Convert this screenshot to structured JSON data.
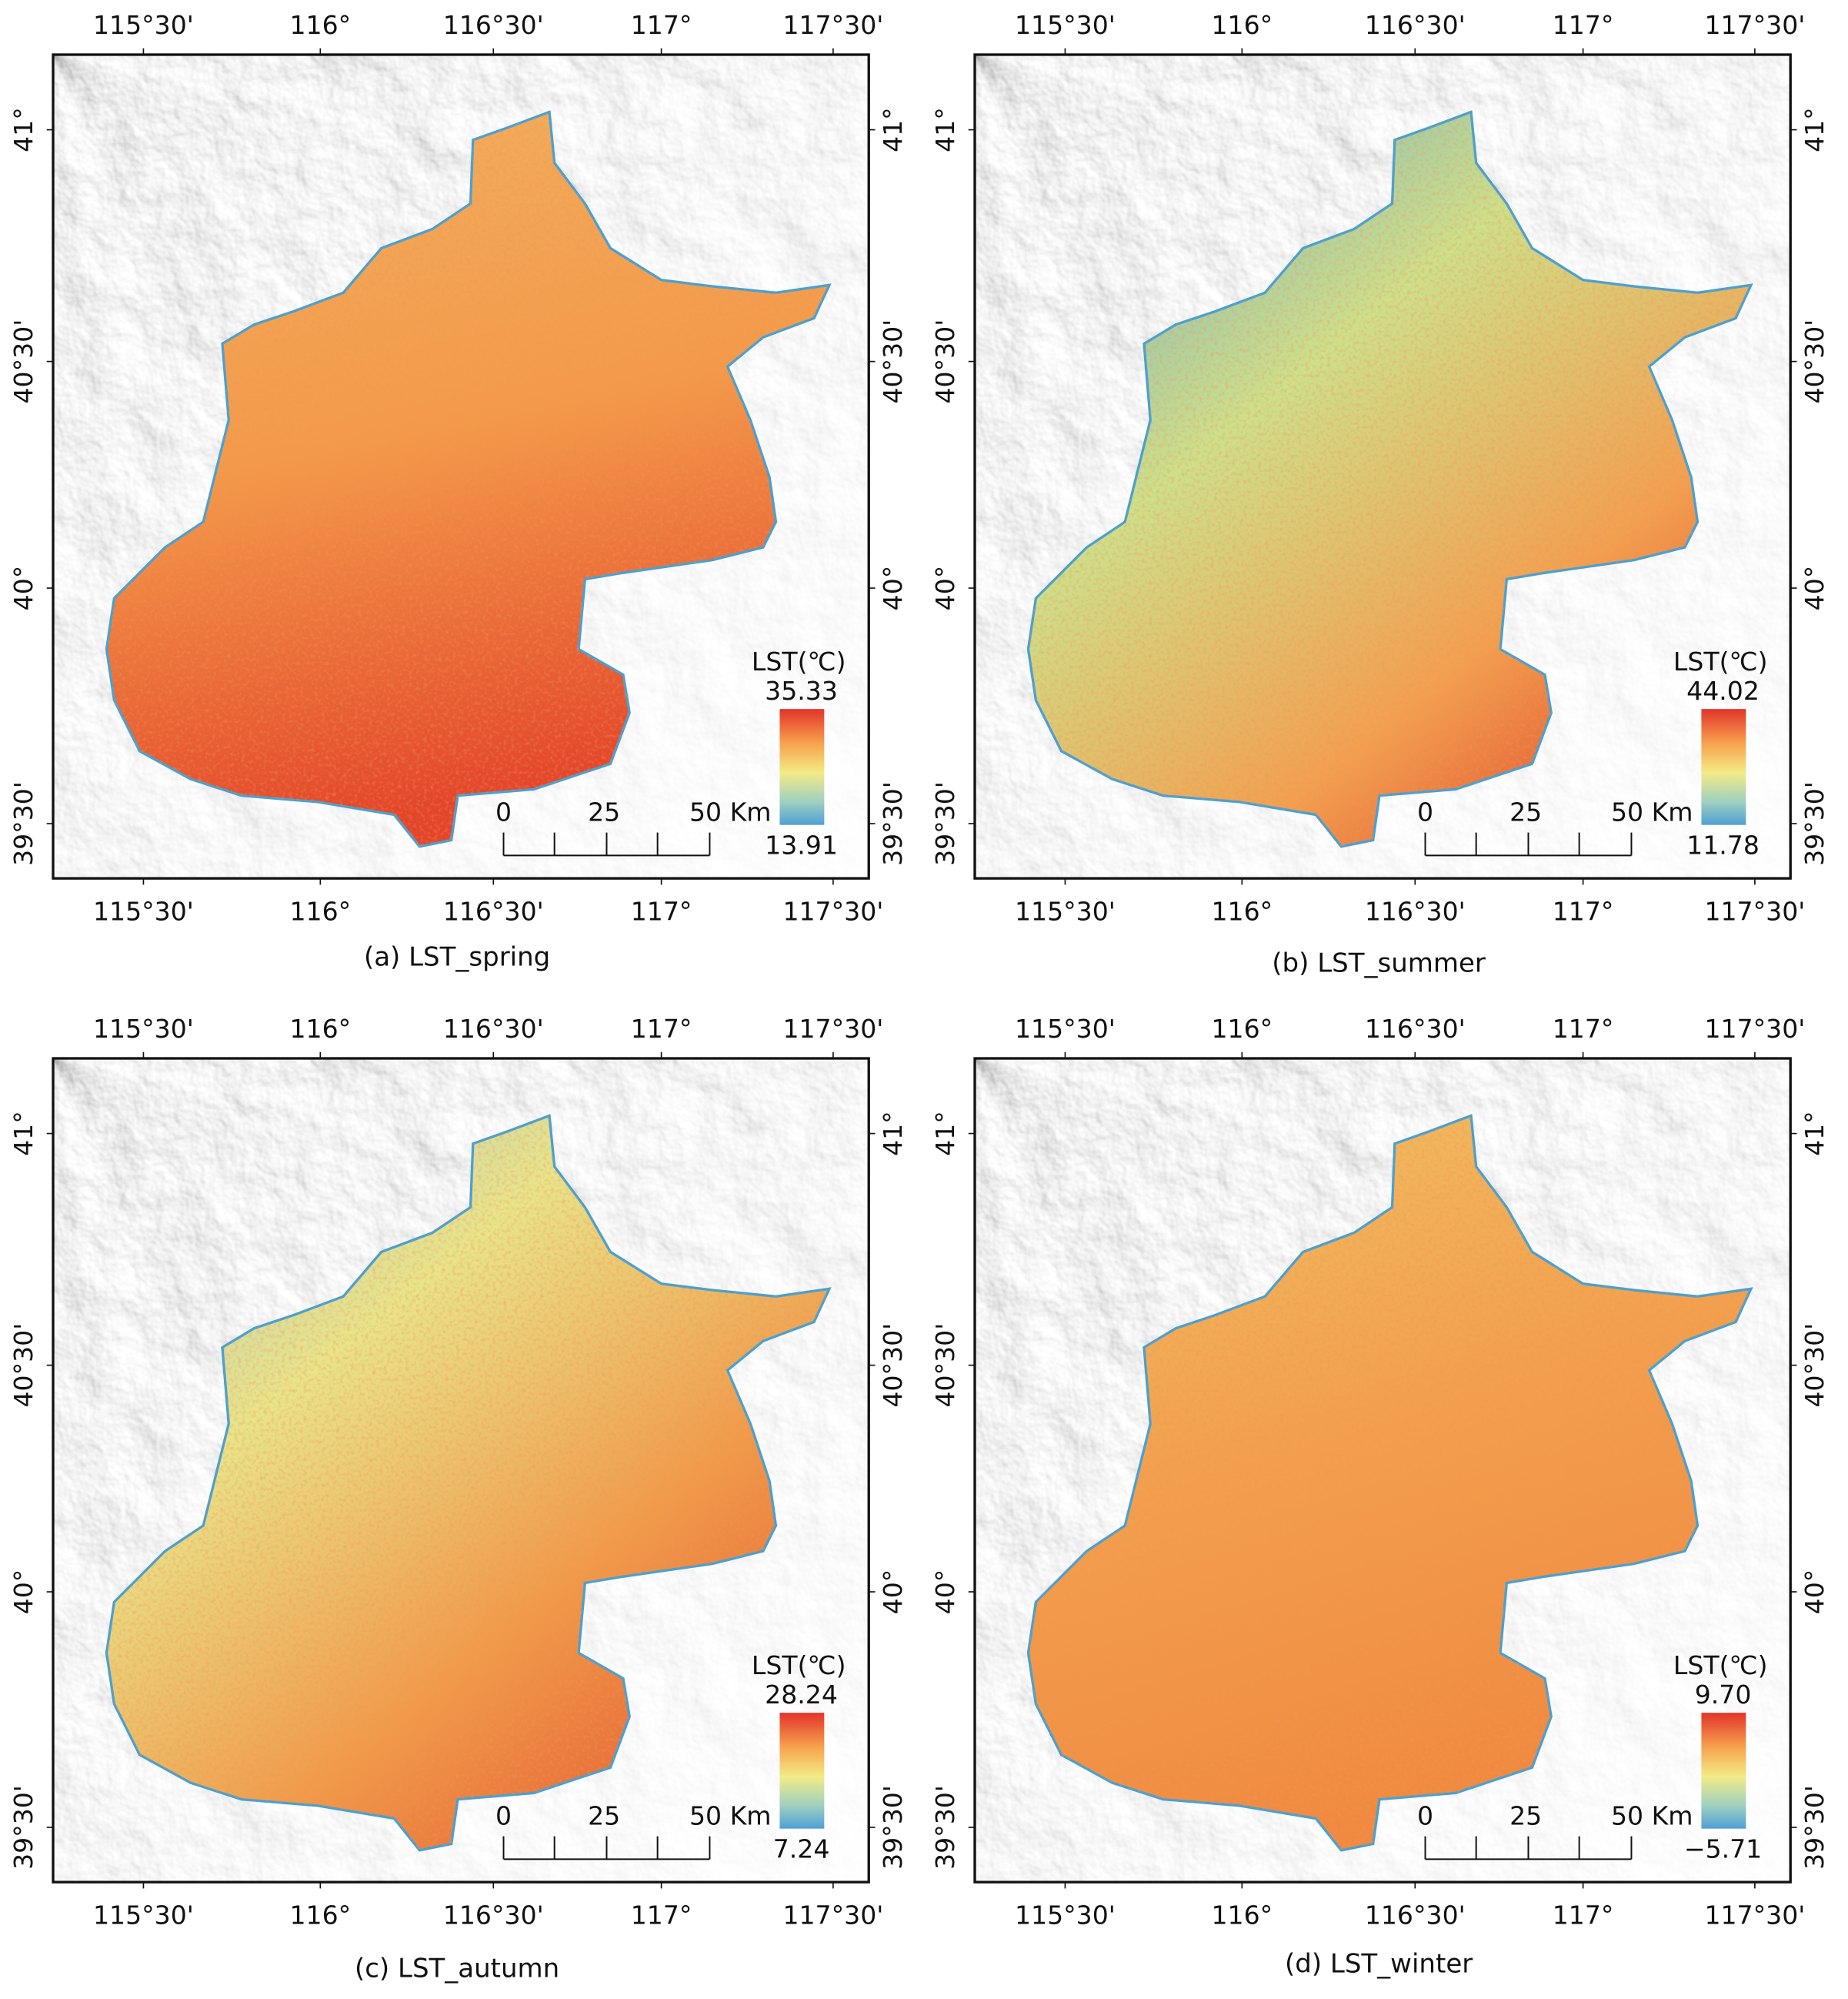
{
  "panels": [
    {
      "caption": "(a) LST_spring",
      "legend": {
        "title": "LST(℃)",
        "max": "35.33",
        "min": "13.91"
      },
      "scale_bar": [
        "0",
        "25",
        "50 Km"
      ],
      "lon_ticks": [
        "115°30'",
        "116°",
        "116°30'",
        "117°",
        "117°30'"
      ],
      "lat_ticks": [
        "41°",
        "40°30'",
        "40°",
        "39°30'"
      ]
    },
    {
      "caption": "(b) LST_summer",
      "legend": {
        "title": "LST(℃)",
        "max": "44.02",
        "min": "11.78"
      },
      "scale_bar": [
        "0",
        "25",
        "50 Km"
      ],
      "lon_ticks": [
        "115°30'",
        "116°",
        "116°30'",
        "117°",
        "117°30'"
      ],
      "lat_ticks": [
        "41°",
        "40°30'",
        "40°",
        "39°30'"
      ]
    },
    {
      "caption": "(c) LST_autumn",
      "legend": {
        "title": "LST(℃)",
        "max": "28.24",
        "min": "7.24"
      },
      "scale_bar": [
        "0",
        "25",
        "50 Km"
      ],
      "lon_ticks": [
        "115°30'",
        "116°",
        "116°30'",
        "117°",
        "117°30'"
      ],
      "lat_ticks": [
        "41°",
        "40°30'",
        "40°",
        "39°30'"
      ]
    },
    {
      "caption": "(d) LST_winter",
      "legend": {
        "title": "LST(℃)",
        "max": "9.70",
        "min": "−5.71"
      },
      "scale_bar": [
        "0",
        "25",
        "50 Km"
      ],
      "lon_ticks": [
        "115°30'",
        "116°",
        "116°30'",
        "117°",
        "117°30'"
      ],
      "lat_ticks": [
        "41°",
        "40°30'",
        "40°",
        "39°30'"
      ]
    }
  ]
}
